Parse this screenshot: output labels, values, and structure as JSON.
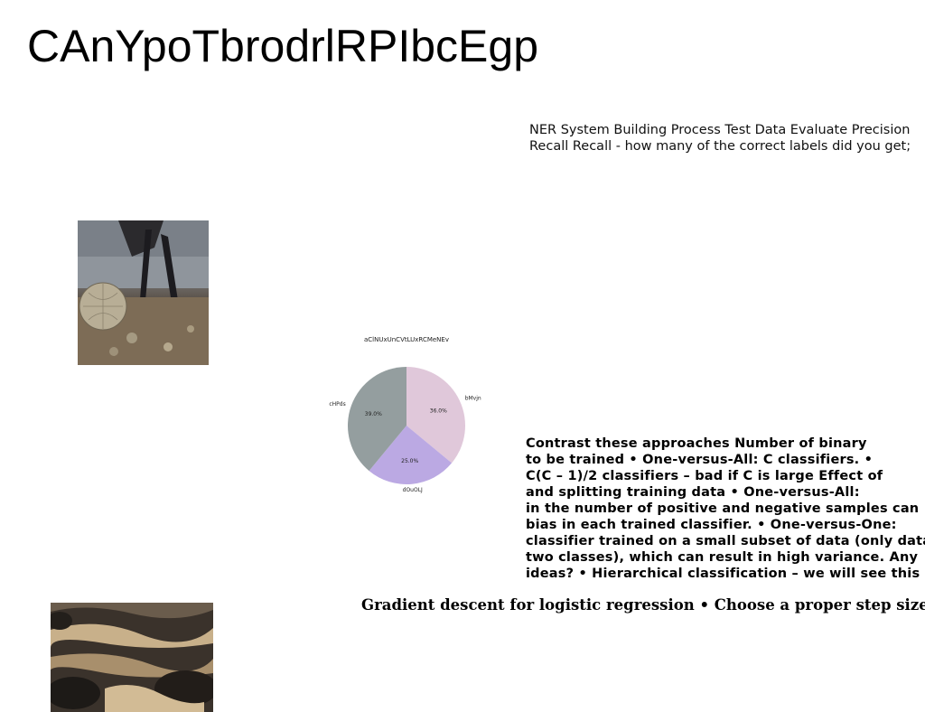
{
  "title": "CAnYpoTbrodrlRPIbcEgp",
  "ner_text": "NER System Building Process Test Data Evaluate Precision Recall Recall - how many of the correct labels did you get;",
  "contrast_lines": [
    "Contrast these approaches Number of binary",
    "to be trained • One-versus-All: C classifiers. •",
    "C(C – 1)/2 classifiers – bad if C is large Effect of",
    "and splitting training data • One-versus-All:",
    "in the number of positive and negative samples can",
    "bias in each trained classifier. • One-versus-One:",
    "classifier trained on a small subset of data (only data",
    "two classes), which can result in high variance. Any",
    "ideas? • Hierarchical classification – we will see this"
  ],
  "gradient_text": "Gradient descent for logistic regression • Choose a proper step size η",
  "images": {
    "photo1": "photo-legs-disco-ball",
    "photo2": "photo-water-rocks"
  },
  "chart_data": {
    "type": "pie",
    "title": "aClNUxUnCVtLUxRCMeNEv",
    "slices": [
      {
        "label": "bMvjn",
        "value": 36.0,
        "pct_label": "36.0%",
        "color": "#e0c8da"
      },
      {
        "label": "dOuOLJ",
        "value": 25.0,
        "pct_label": "25.0%",
        "color": "#bba9e3"
      },
      {
        "label": "cHPds",
        "value": 39.0,
        "pct_label": "39.0%",
        "color": "#949e9f"
      }
    ],
    "start_angle_deg": 90,
    "direction": "clockwise"
  }
}
